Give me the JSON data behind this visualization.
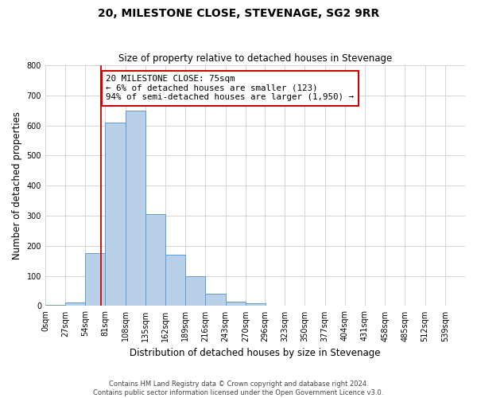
{
  "title": "20, MILESTONE CLOSE, STEVENAGE, SG2 9RR",
  "subtitle": "Size of property relative to detached houses in Stevenage",
  "xlabel": "Distribution of detached houses by size in Stevenage",
  "ylabel": "Number of detached properties",
  "bin_labels": [
    "0sqm",
    "27sqm",
    "54sqm",
    "81sqm",
    "108sqm",
    "135sqm",
    "162sqm",
    "189sqm",
    "216sqm",
    "243sqm",
    "270sqm",
    "296sqm",
    "323sqm",
    "350sqm",
    "377sqm",
    "404sqm",
    "431sqm",
    "458sqm",
    "485sqm",
    "512sqm",
    "539sqm"
  ],
  "bar_values": [
    5,
    12,
    175,
    610,
    650,
    305,
    170,
    100,
    40,
    15,
    10,
    2,
    2,
    0,
    0,
    0,
    0,
    0,
    0,
    2
  ],
  "bar_color": "#b8d0e8",
  "bar_edge_color": "#5b9bd5",
  "property_size": 75,
  "red_line_x": 75,
  "ylim": [
    0,
    800
  ],
  "yticks": [
    0,
    100,
    200,
    300,
    400,
    500,
    600,
    700,
    800
  ],
  "annotation_line1": "20 MILESTONE CLOSE: 75sqm",
  "annotation_line2": "← 6% of detached houses are smaller (123)",
  "annotation_line3": "94% of semi-detached houses are larger (1,950) →",
  "annotation_box_color": "#ffffff",
  "annotation_box_edge": "#cc0000",
  "footer_line1": "Contains HM Land Registry data © Crown copyright and database right 2024.",
  "footer_line2": "Contains public sector information licensed under the Open Government Licence v3.0.",
  "background_color": "#ffffff",
  "grid_color": "#d0d0d0"
}
